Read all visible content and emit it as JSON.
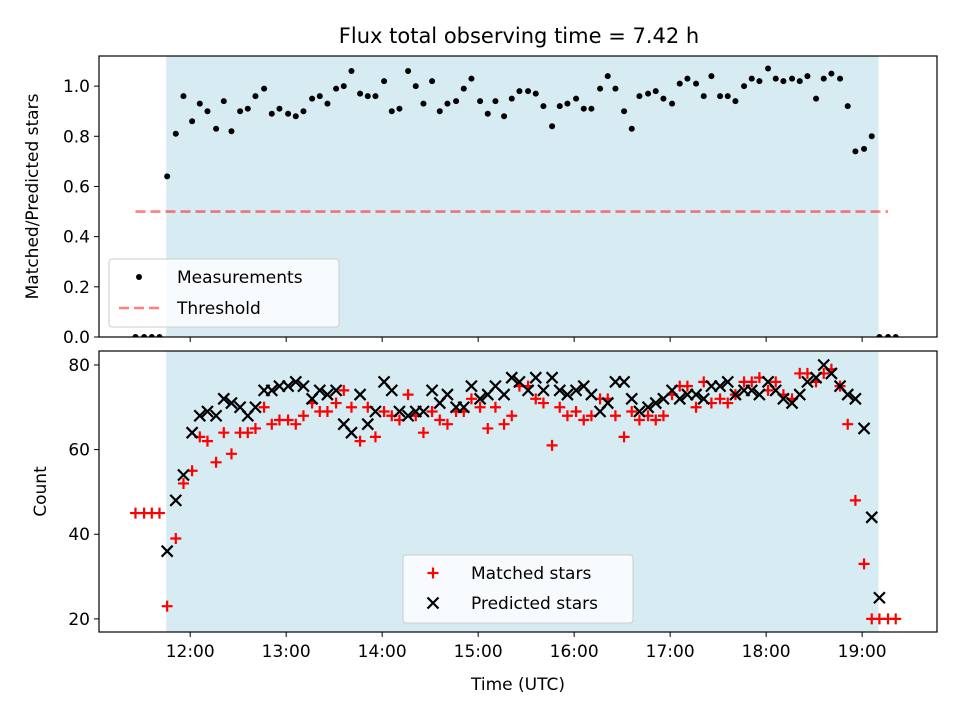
{
  "title": "Flux total observing time = 7.42 h",
  "colors": {
    "background_band": "#add8e6",
    "measurements": "#000000",
    "threshold": "#ff0000",
    "matched": "#ff0000",
    "predicted": "#000000"
  },
  "chart_data": [
    {
      "type": "scatter",
      "panel": "top",
      "ylabel": "Matched/Predicted stars",
      "xlabel": "",
      "ylim": [
        0.0,
        1.12
      ],
      "yticks": [
        "0.0",
        "0.2",
        "0.4",
        "0.6",
        "0.8",
        "1.0"
      ],
      "x_unit": "hours UTC",
      "xlim": [
        11.05,
        19.78
      ],
      "shaded_interval": [
        11.75,
        19.17
      ],
      "threshold": 0.5,
      "threshold_span": [
        11.43,
        19.27
      ],
      "legend": {
        "position": "lower-left",
        "entries": [
          "Measurements",
          "Threshold"
        ]
      },
      "series": [
        {
          "name": "Measurements",
          "x": [
            11.43,
            11.52,
            11.6,
            11.68,
            11.76,
            11.85,
            11.93,
            12.02,
            12.1,
            12.18,
            12.27,
            12.35,
            12.43,
            12.52,
            12.6,
            12.68,
            12.77,
            12.85,
            12.93,
            13.02,
            13.1,
            13.18,
            13.27,
            13.35,
            13.43,
            13.52,
            13.6,
            13.68,
            13.77,
            13.85,
            13.93,
            14.02,
            14.1,
            14.18,
            14.27,
            14.35,
            14.43,
            14.52,
            14.6,
            14.68,
            14.77,
            14.85,
            14.93,
            15.02,
            15.1,
            15.18,
            15.27,
            15.35,
            15.43,
            15.52,
            15.6,
            15.68,
            15.77,
            15.85,
            15.93,
            16.02,
            16.1,
            16.18,
            16.27,
            16.35,
            16.43,
            16.52,
            16.6,
            16.68,
            16.77,
            16.85,
            16.93,
            17.02,
            17.1,
            17.18,
            17.27,
            17.35,
            17.43,
            17.52,
            17.6,
            17.68,
            17.77,
            17.85,
            17.93,
            18.02,
            18.1,
            18.18,
            18.27,
            18.35,
            18.43,
            18.52,
            18.6,
            18.68,
            18.77,
            18.85,
            18.93,
            19.02,
            19.1,
            19.18,
            19.27,
            19.35
          ],
          "y": [
            0.0,
            0.0,
            0.0,
            0.0,
            0.64,
            0.81,
            0.96,
            0.86,
            0.93,
            0.9,
            0.83,
            0.94,
            0.82,
            0.9,
            0.91,
            0.96,
            0.99,
            0.89,
            0.91,
            0.89,
            0.88,
            0.9,
            0.95,
            0.96,
            0.93,
            0.99,
            1.0,
            1.06,
            0.97,
            0.96,
            0.96,
            1.02,
            0.9,
            0.91,
            1.06,
            1.0,
            0.93,
            1.02,
            0.9,
            0.93,
            0.94,
            0.99,
            1.03,
            0.94,
            0.89,
            0.94,
            0.88,
            0.95,
            0.98,
            0.98,
            0.97,
            0.92,
            0.84,
            0.92,
            0.93,
            0.95,
            0.91,
            0.91,
            0.99,
            1.04,
            0.99,
            0.9,
            0.83,
            0.96,
            0.97,
            0.98,
            0.95,
            0.93,
            1.01,
            1.03,
            1.01,
            0.96,
            1.04,
            0.96,
            0.96,
            0.94,
            1.0,
            1.03,
            1.02,
            1.07,
            1.03,
            1.02,
            1.03,
            1.02,
            1.04,
            0.95,
            1.03,
            1.05,
            1.03,
            0.92,
            0.74,
            0.75,
            0.8,
            0.0,
            0.0,
            0.0
          ]
        }
      ]
    },
    {
      "type": "scatter",
      "panel": "bottom",
      "ylabel": "Count",
      "xlabel": "Time (UTC)",
      "ylim": [
        16.9,
        83.3
      ],
      "yticks": [
        "20",
        "40",
        "60",
        "80"
      ],
      "xticks": [
        "12:00",
        "13:00",
        "14:00",
        "15:00",
        "16:00",
        "17:00",
        "18:00",
        "19:00"
      ],
      "x_unit": "hours UTC",
      "xlim": [
        11.05,
        19.78
      ],
      "shaded_interval": [
        11.75,
        19.17
      ],
      "legend": {
        "position": "lower-center",
        "entries": [
          "Matched stars",
          "Predicted stars"
        ]
      },
      "series": [
        {
          "name": "Matched stars",
          "x": [
            11.43,
            11.52,
            11.6,
            11.68,
            11.76,
            11.85,
            11.93,
            12.02,
            12.1,
            12.18,
            12.27,
            12.35,
            12.43,
            12.52,
            12.6,
            12.68,
            12.77,
            12.85,
            12.93,
            13.02,
            13.1,
            13.18,
            13.27,
            13.35,
            13.43,
            13.52,
            13.6,
            13.68,
            13.77,
            13.85,
            13.93,
            14.02,
            14.1,
            14.18,
            14.27,
            14.35,
            14.43,
            14.52,
            14.6,
            14.68,
            14.77,
            14.85,
            14.93,
            15.02,
            15.1,
            15.18,
            15.27,
            15.35,
            15.43,
            15.52,
            15.6,
            15.68,
            15.77,
            15.85,
            15.93,
            16.02,
            16.1,
            16.18,
            16.27,
            16.35,
            16.43,
            16.52,
            16.6,
            16.68,
            16.77,
            16.85,
            16.93,
            17.02,
            17.1,
            17.18,
            17.27,
            17.35,
            17.43,
            17.52,
            17.6,
            17.68,
            17.77,
            17.85,
            17.93,
            18.02,
            18.1,
            18.18,
            18.27,
            18.35,
            18.43,
            18.52,
            18.6,
            18.68,
            18.77,
            18.85,
            18.93,
            19.02,
            19.1,
            19.18,
            19.27,
            19.35
          ],
          "y": [
            45,
            45,
            45,
            45,
            23,
            39,
            52,
            55,
            63,
            62,
            57,
            64,
            59,
            64,
            64,
            65,
            70,
            66,
            67,
            67,
            66,
            68,
            71,
            69,
            69,
            71,
            74,
            70,
            62,
            70,
            63,
            69,
            68,
            67,
            73,
            68,
            64,
            69,
            67,
            66,
            69,
            69,
            72,
            70,
            65,
            70,
            66,
            68,
            75,
            75,
            72,
            71,
            61,
            70,
            68,
            69,
            67,
            68,
            72,
            72,
            68,
            63,
            69,
            67,
            68,
            67,
            68,
            73,
            75,
            75,
            70,
            76,
            71,
            72,
            71,
            73,
            76,
            76,
            77,
            74,
            76,
            73,
            72,
            78,
            78,
            76,
            78,
            79,
            75,
            66,
            48,
            33,
            20,
            20,
            20,
            20
          ]
        },
        {
          "name": "Predicted stars",
          "x": [
            11.76,
            11.85,
            11.93,
            12.02,
            12.1,
            12.18,
            12.27,
            12.35,
            12.43,
            12.52,
            12.6,
            12.68,
            12.77,
            12.85,
            12.93,
            13.02,
            13.1,
            13.18,
            13.27,
            13.35,
            13.43,
            13.52,
            13.6,
            13.68,
            13.77,
            13.85,
            13.93,
            14.02,
            14.1,
            14.18,
            14.27,
            14.35,
            14.43,
            14.52,
            14.6,
            14.68,
            14.77,
            14.85,
            14.93,
            15.02,
            15.1,
            15.18,
            15.27,
            15.35,
            15.43,
            15.52,
            15.6,
            15.68,
            15.77,
            15.85,
            15.93,
            16.02,
            16.1,
            16.18,
            16.27,
            16.35,
            16.43,
            16.52,
            16.6,
            16.68,
            16.77,
            16.85,
            16.93,
            17.02,
            17.1,
            17.18,
            17.27,
            17.35,
            17.43,
            17.52,
            17.6,
            17.68,
            17.77,
            17.85,
            17.93,
            18.02,
            18.1,
            18.18,
            18.27,
            18.35,
            18.43,
            18.52,
            18.6,
            18.68,
            18.77,
            18.85,
            18.93,
            19.02,
            19.1,
            19.18
          ],
          "y": [
            36,
            48,
            54,
            64,
            68,
            69,
            68,
            72,
            71,
            70,
            68,
            70,
            74,
            74,
            75,
            75,
            76,
            75,
            72,
            74,
            73,
            74,
            66,
            64,
            73,
            66,
            69,
            76,
            74,
            69,
            68,
            69,
            69,
            74,
            71,
            73,
            70,
            70,
            75,
            72,
            73,
            75,
            73,
            77,
            76,
            74,
            77,
            74,
            77,
            74,
            73,
            74,
            75,
            73,
            69,
            71,
            76,
            76,
            72,
            69,
            70,
            71,
            72,
            74,
            72,
            73,
            73,
            72,
            75,
            75,
            76,
            73,
            74,
            74,
            73,
            76,
            74,
            72,
            71,
            73,
            76,
            77,
            80,
            78,
            75,
            73,
            72,
            65,
            44,
            25
          ]
        }
      ]
    }
  ]
}
